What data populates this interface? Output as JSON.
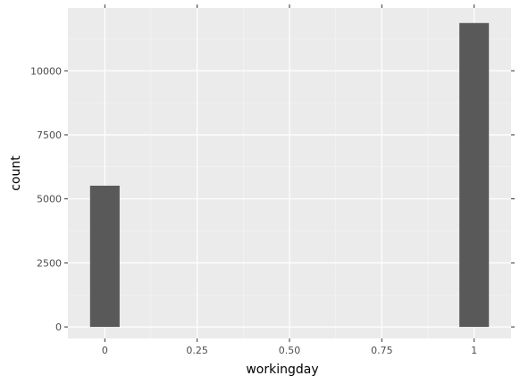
{
  "chart_data": {
    "type": "bar",
    "title": "",
    "xlabel": "workingday",
    "ylabel": "count",
    "x": [
      0,
      1
    ],
    "values": [
      5514,
      11865
    ],
    "bar_width": 0.08,
    "xlim": [
      -0.1,
      1.1
    ],
    "ylim": [
      -450,
      12450
    ],
    "xticks": [
      0,
      0.25,
      0.5,
      0.75,
      1
    ],
    "xtick_labels": [
      "0",
      "0.25",
      "0.50",
      "0.75",
      "1"
    ],
    "yticks": [
      0,
      2500,
      5000,
      7500,
      10000
    ],
    "ytick_labels": [
      "0",
      "2500",
      "5000",
      "7500",
      "10000"
    ],
    "grid": true,
    "legend": "none",
    "colors": {
      "panel": "#ebebeb",
      "grid_major": "#ffffff",
      "grid_minor": "#f5f5f5",
      "bar": "#595959",
      "tick": "#333333",
      "tick_label": "#4d4d4d"
    }
  }
}
